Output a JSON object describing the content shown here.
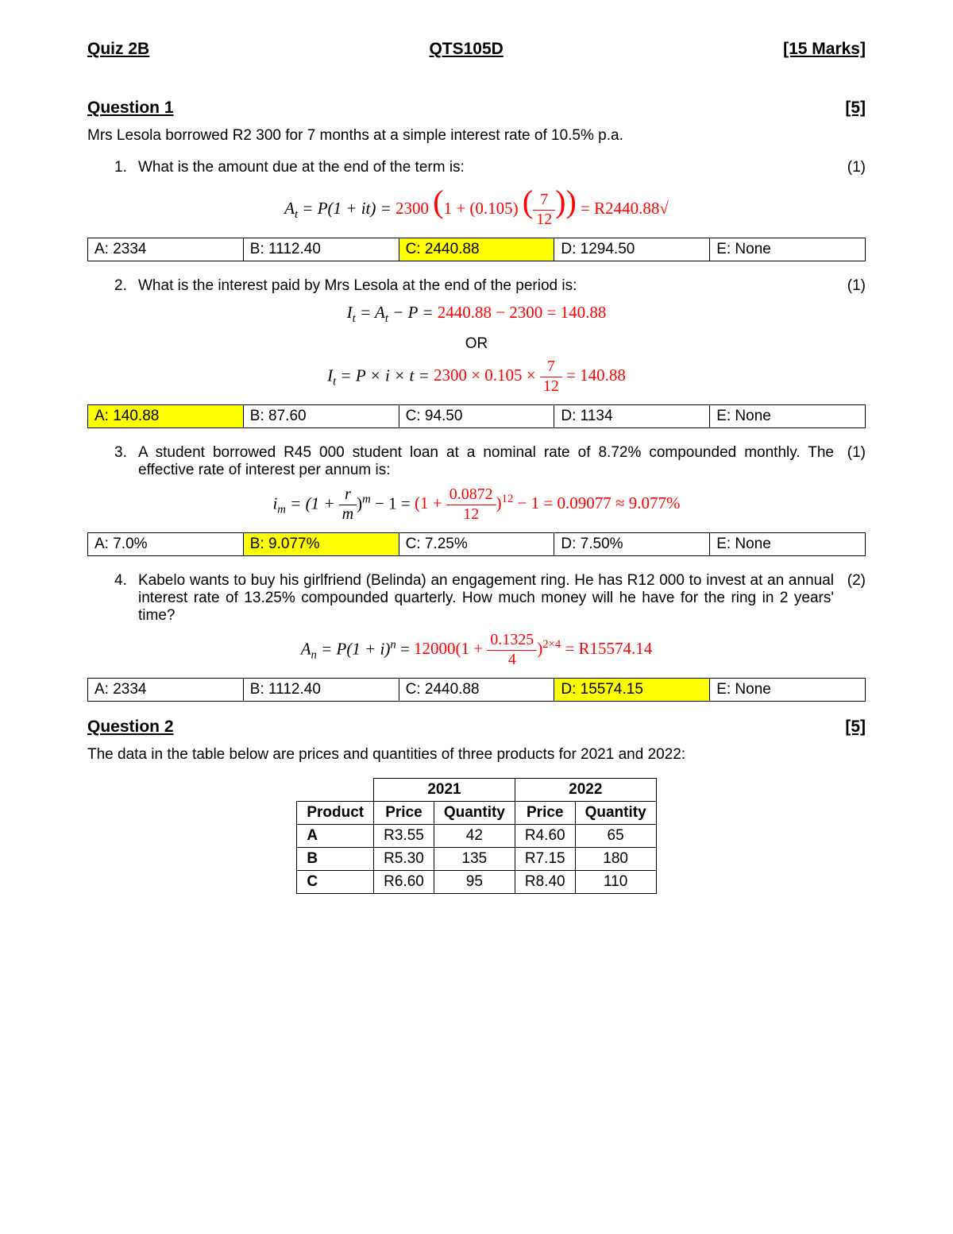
{
  "header": {
    "left": "Quiz 2B",
    "center": "QTS105D",
    "right": "[15 Marks]"
  },
  "q1": {
    "title": "Question 1",
    "marks": "[5]",
    "intro": "Mrs Lesola borrowed R2 300 for 7 months at a simple interest rate of 10.5% p.a.",
    "p1": {
      "num": "1.",
      "text": "What is the amount due at the end of the term is:",
      "pts": "(1)",
      "eq_lhs": "A",
      "eq_sub": "t",
      "eq_formula": " = P(1 + it) = ",
      "eq_rhs1": "2300",
      "eq_rhs2": "1 + (0.105)",
      "eq_frac_n": "7",
      "eq_frac_d": "12",
      "eq_result": " = R2440.88√",
      "ans": {
        "A": "A:   2334",
        "B": "B:   1112.40",
        "C": "C:  2440.88",
        "D": "D:   1294.50",
        "E": "E: None",
        "correct": "C"
      }
    },
    "p2": {
      "num": "2.",
      "text": "What is the interest paid by Mrs Lesola at the end of the period is:",
      "pts": "(1)",
      "eq1_lhs": "I",
      "eq1_sub": "t",
      "eq1_mid": " = A",
      "eq1_sub2": "t",
      "eq1_end": " − P = ",
      "eq1_red": "2440.88 − 2300 = 140.88",
      "or": "OR",
      "eq2_lhs": "I",
      "eq2_sub": "t",
      "eq2_mid": " = P × i × t = ",
      "eq2_red_a": "2300 × 0.105 × ",
      "eq2_frac_n": "7",
      "eq2_frac_d": "12",
      "eq2_red_b": " = 140.88",
      "ans": {
        "A": "A:   140.88",
        "B": "B:   87.60",
        "C": "C:   94.50",
        "D": "D:   1134",
        "E": "E: None",
        "correct": "A"
      }
    },
    "p3": {
      "num": "3.",
      "text": "A student borrowed R45 000 student loan at a nominal rate of 8.72% compounded monthly. The effective rate of interest per annum is:",
      "pts": "(1)",
      "eq_lhs": "i",
      "eq_sub": "m",
      "eq_mid": " = (1 + ",
      "eq_frac1_n": "r",
      "eq_frac1_d": "m",
      "eq_sup1": "m",
      "eq_after1": " − 1 = ",
      "eq_red_a": "(1 + ",
      "eq_frac2_n": "0.0872",
      "eq_frac2_d": "12",
      "eq_sup2": "12",
      "eq_red_b": " − 1 = 0.09077 ≈ 9.077%",
      "ans": {
        "A": "A:        7.0%",
        "B": "B:      9.077%",
        "C": "C:      7.25%",
        "D": "D:      7.50%",
        "E": "E:       None",
        "correct": "B"
      }
    },
    "p4": {
      "num": "4.",
      "text": "Kabelo wants to buy his girlfriend (Belinda) an engagement ring.  He has R12 000 to invest at an annual interest rate of 13.25% compounded quarterly.  How much money will he have for the ring in 2 years' time?",
      "pts": "(2)",
      "eq_lhs": "A",
      "eq_sub": "n",
      "eq_mid": " = P(1 + i)",
      "eq_sup1": "n",
      "eq_eq": " = ",
      "eq_red_a": "12000(1 + ",
      "eq_frac_n": "0.1325",
      "eq_frac_d": "4",
      "eq_sup2": "2×4",
      "eq_red_b": " = R15574.14",
      "ans": {
        "A": "A:  2334",
        "B": "B:   1112.40",
        "C": "C:  2440.88",
        "D": "D:   15574.15",
        "E": "E: None",
        "correct": "D"
      }
    }
  },
  "q2": {
    "title": "Question 2",
    "marks": "[5]",
    "intro": "The data in the table below are prices and quantities of three products for 2021 and 2022:",
    "years": [
      "2021",
      "2022"
    ],
    "cols": [
      "Product",
      "Price",
      "Quantity",
      "Price",
      "Quantity"
    ],
    "rows": [
      [
        "A",
        "R3.55",
        "42",
        "R4.60",
        "65"
      ],
      [
        "B",
        "R5.30",
        "135",
        "R7.15",
        "180"
      ],
      [
        "C",
        "R6.60",
        "95",
        "R8.40",
        "110"
      ]
    ]
  },
  "colors": {
    "highlight": "#ffff00",
    "solution": "#ff0000",
    "text": "#000000",
    "bg": "#ffffff"
  }
}
